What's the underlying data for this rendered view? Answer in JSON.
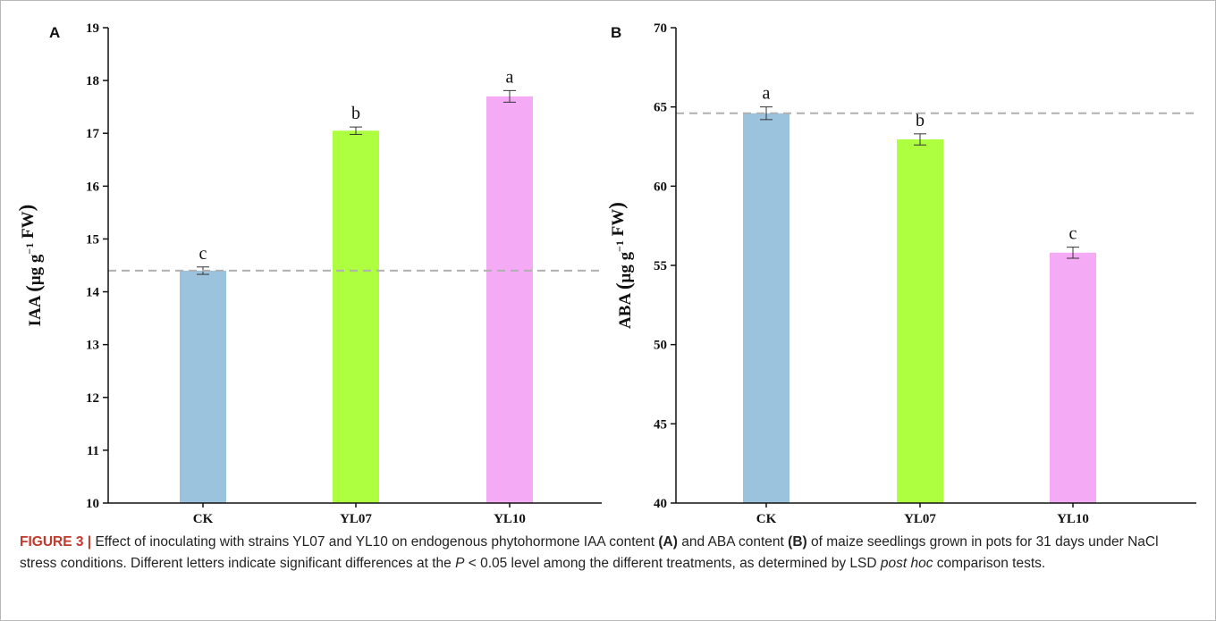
{
  "chart_data": [
    {
      "type": "bar",
      "panel": "A",
      "categories": [
        "CK",
        "YL07",
        "YL10"
      ],
      "values": [
        14.4,
        17.05,
        17.7
      ],
      "errors": [
        0.07,
        0.07,
        0.11
      ],
      "significance": [
        "c",
        "b",
        "a"
      ],
      "colors": [
        "#9cc3de",
        "#adff3f",
        "#f4aaf4"
      ],
      "ylabel_main": "IAA",
      "ylabel_unit_open": "(",
      "ylabel_unit_mid": "μg g",
      "ylabel_unit_sup": "−1",
      "ylabel_unit_end": " FW",
      "ylabel_unit_close": ")",
      "ylim": [
        10,
        19
      ],
      "yticks": [
        10,
        11,
        12,
        13,
        14,
        15,
        16,
        17,
        18,
        19
      ],
      "reference_line": 14.4,
      "grid": false
    },
    {
      "type": "bar",
      "panel": "B",
      "categories": [
        "CK",
        "YL07",
        "YL10"
      ],
      "values": [
        64.6,
        62.95,
        55.8
      ],
      "errors": [
        0.4,
        0.35,
        0.35
      ],
      "significance": [
        "a",
        "b",
        "c"
      ],
      "colors": [
        "#9cc3de",
        "#adff3f",
        "#f4aaf4"
      ],
      "ylabel_main": "ABA",
      "ylabel_unit_open": "(",
      "ylabel_unit_mid": "μg g",
      "ylabel_unit_sup": "−1",
      "ylabel_unit_end": " FW",
      "ylabel_unit_close": ")",
      "ylim": [
        40,
        70
      ],
      "yticks": [
        40,
        45,
        50,
        55,
        60,
        65,
        70
      ],
      "reference_line": 64.6,
      "grid": false
    }
  ],
  "caption": {
    "label": "FIGURE 3 |",
    "text1": " Effect of inoculating with strains YL07 and YL10 on endogenous phytohormone IAA content ",
    "bold_a": "(A)",
    "text2": " and ABA content ",
    "bold_b": "(B)",
    "text3": " of maize seedlings grown in pots for 31 days under NaCl stress conditions. Different letters indicate significant differences at the ",
    "italic_p": "P",
    "text4": " < 0.05 level among the different treatments, as determined by LSD ",
    "italic_posthoc": "post hoc",
    "text5": " comparison tests."
  }
}
